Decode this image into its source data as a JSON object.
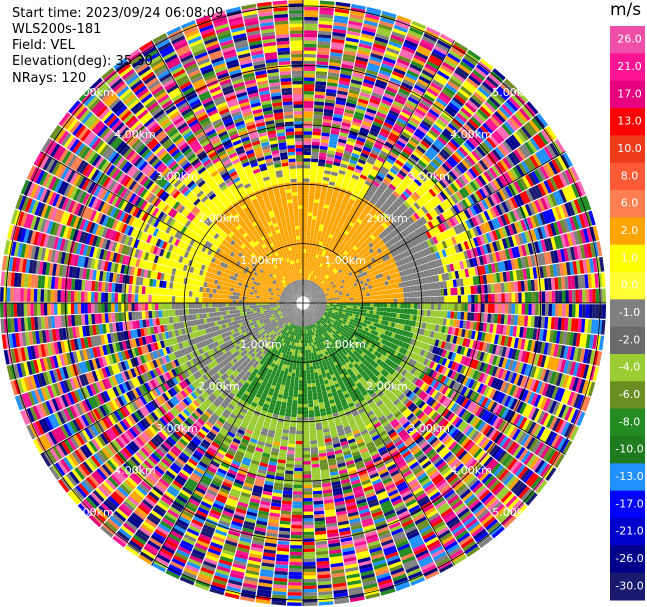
{
  "header": {
    "start_time": "Start time: 2023/09/24 06:08:09",
    "instrument": "WLS200s-181",
    "field": "Field: VEL",
    "elevation": "Elevation(deg): 35.30",
    "nrays": "NRays: 120"
  },
  "chart_data": {
    "type": "heatmap",
    "subtype": "polar-ppi",
    "field": "VEL",
    "units": "m/s",
    "nrays": 120,
    "elevation_deg": 35.3,
    "range_rings_km": [
      1,
      2,
      3,
      4,
      5
    ],
    "ring_labels": [
      "1.00km",
      "2.00km",
      "3.00km",
      "4.00km",
      "5.00km"
    ],
    "max_range_km": 5.1,
    "colorbar": {
      "ticks": [
        "26.0",
        "21.0",
        "17.0",
        "13.0",
        "10.0",
        "8.0",
        "6.0",
        "2.0",
        "1.0",
        "0.0",
        "-1.0",
        "-2.0",
        "-4.0",
        "-6.0",
        "-8.0",
        "-10.0",
        "-13.0",
        "-17.0",
        "-21.0",
        "-26.0",
        "-30.0"
      ],
      "colors": [
        "#ef4fa6",
        "#ff1493",
        "#e6007e",
        "#ff0000",
        "#ee3b1a",
        "#ff5a36",
        "#ff7f50",
        "#ffa500",
        "#ffff00",
        "#ffff33",
        "#808080",
        "#6b6b6b",
        "#9acd32",
        "#6b8e23",
        "#228b22",
        "#1e7b1e",
        "#1e90ff",
        "#0000ff",
        "#0000cd",
        "#00008b",
        "#191970"
      ]
    }
  }
}
